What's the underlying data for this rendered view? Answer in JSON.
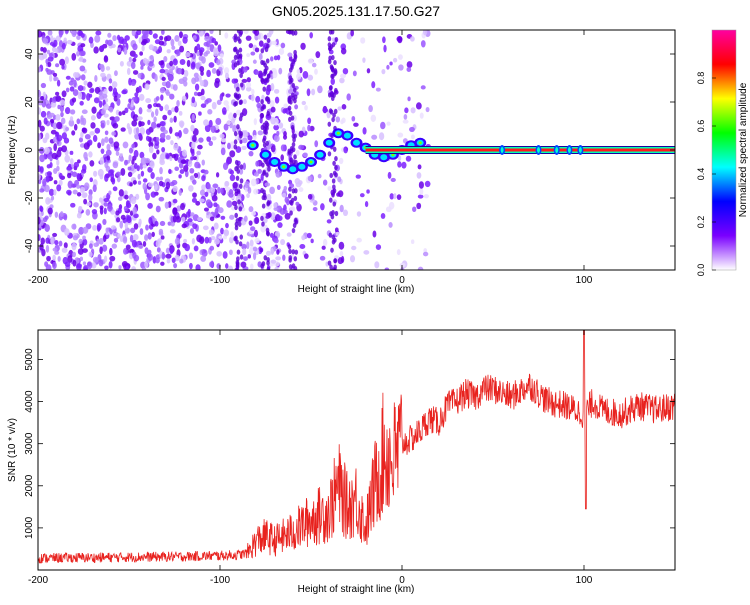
{
  "title": "GN05.2025.131.17.50.G27",
  "chart_data": [
    {
      "type": "heatmap",
      "xlabel": "Height of straight line (km)",
      "ylabel": "Frequency (Hz)",
      "xlim": [
        -200,
        150
      ],
      "ylim": [
        -50,
        50
      ],
      "x_ticks": [
        -200,
        -100,
        0,
        100
      ],
      "y_ticks": [
        -40,
        -20,
        0,
        20,
        40
      ],
      "colorbar": {
        "label": "Normalized spectral amplitude",
        "range": [
          0,
          1
        ],
        "ticks": [
          "0.0",
          "0.2",
          "0.4",
          "0.6",
          "0.8"
        ],
        "colors": [
          "#ffffff",
          "#7a00ff",
          "#0000ff",
          "#00ffff",
          "#00ff00",
          "#ffff00",
          "#ff0000",
          "#ff00a0"
        ]
      },
      "ridge": {
        "x": [
          -82,
          -75,
          -70,
          -65,
          -60,
          -55,
          -50,
          -45,
          -40,
          -35,
          -30,
          -25,
          -20,
          -15,
          -10,
          -5,
          0,
          5,
          10
        ],
        "y": [
          2,
          -2,
          -5,
          -7,
          -8,
          -7,
          -5,
          -2,
          3,
          7,
          6,
          3,
          1,
          -2,
          -3,
          -2,
          0,
          2,
          3
        ]
      },
      "line": {
        "y": 0,
        "x_range": [
          -20,
          150
        ],
        "ticks_x": [
          55,
          75,
          85,
          92,
          98
        ]
      },
      "grid": false
    },
    {
      "type": "line",
      "xlabel": "Height of straight line (km)",
      "ylabel": "SNR (10 * v/v)",
      "xlim": [
        -200,
        150
      ],
      "ylim": [
        0,
        5700
      ],
      "x_ticks": [
        -200,
        -100,
        0,
        100
      ],
      "y_ticks": [
        1000,
        2000,
        3000,
        4000,
        5000
      ],
      "color": "#e8221e",
      "series": [
        {
          "x": [
            -200,
            -180,
            -160,
            -140,
            -120,
            -100,
            -90,
            -85,
            -80,
            -75,
            -70,
            -60,
            -50,
            -40,
            -35,
            -30,
            -25,
            -20,
            -15,
            -10,
            -5,
            0,
            5,
            10,
            15,
            20,
            25,
            30,
            35,
            40,
            45,
            50,
            60,
            70,
            80,
            90,
            95,
            100,
            105,
            110,
            120,
            130,
            140,
            150
          ],
          "y": [
            280,
            290,
            300,
            310,
            320,
            340,
            360,
            400,
            700,
            800,
            700,
            900,
            1200,
            1400,
            2000,
            1500,
            1700,
            1000,
            2000,
            2800,
            2600,
            3000,
            3100,
            3300,
            3600,
            3500,
            3900,
            4000,
            4200,
            4100,
            4300,
            4300,
            4100,
            4400,
            4000,
            3900,
            3800,
            3700,
            4000,
            3800,
            3700,
            3900,
            3800,
            3900
          ]
        }
      ],
      "grid": false
    }
  ]
}
